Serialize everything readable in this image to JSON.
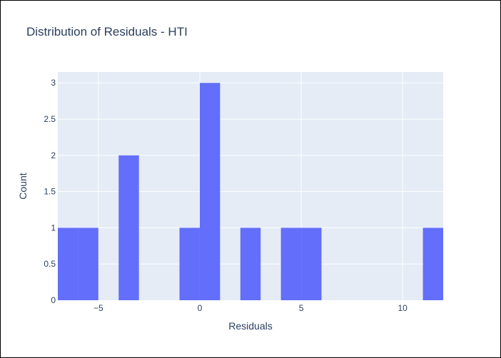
{
  "chart_data": {
    "type": "histogram",
    "title": "Distribution of Residuals - HTI",
    "xlabel": "Residuals",
    "ylabel": "Count",
    "xlim": [
      -7,
      12
    ],
    "ylim": [
      0,
      3.15
    ],
    "x_ticks": [
      {
        "value": -5,
        "label": "−5"
      },
      {
        "value": 0,
        "label": "0"
      },
      {
        "value": 5,
        "label": "5"
      },
      {
        "value": 10,
        "label": "10"
      }
    ],
    "y_ticks": [
      {
        "value": 0,
        "label": "0"
      },
      {
        "value": 0.5,
        "label": "0.5"
      },
      {
        "value": 1,
        "label": "1"
      },
      {
        "value": 1.5,
        "label": "1.5"
      },
      {
        "value": 2,
        "label": "2"
      },
      {
        "value": 2.5,
        "label": "2.5"
      },
      {
        "value": 3,
        "label": "3"
      }
    ],
    "bin_width": 1,
    "bins": [
      {
        "start": -7,
        "count": 1
      },
      {
        "start": -6,
        "count": 1
      },
      {
        "start": -4,
        "count": 2
      },
      {
        "start": -1,
        "count": 1
      },
      {
        "start": 0,
        "count": 3
      },
      {
        "start": 2,
        "count": 1
      },
      {
        "start": 4,
        "count": 1
      },
      {
        "start": 5,
        "count": 1
      },
      {
        "start": 11,
        "count": 1
      }
    ],
    "grid": true,
    "colors": {
      "bar": "#636efa",
      "plot_bg": "#e5ecf6",
      "grid": "#ffffff",
      "text": "#2a3f5f"
    }
  }
}
